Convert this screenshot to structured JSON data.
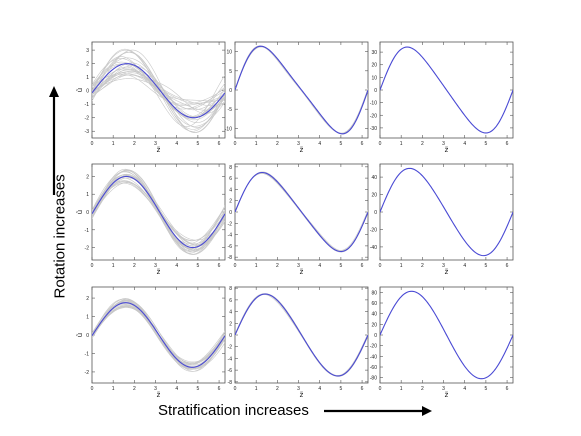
{
  "labels": {
    "stratification": "Stratification increases",
    "rotation": "Rotation increases"
  },
  "colors": {
    "mean_line": "#4a4ad4",
    "sample_lines": "#c8c8c8",
    "arrow": "#000000"
  },
  "chart_data": [
    {
      "type": "line",
      "row": 1,
      "col": 1,
      "xlabel": "z̃",
      "ylabel": "ũ",
      "xticks": [
        0,
        1,
        2,
        3,
        4,
        5,
        6
      ],
      "yticks": [
        -3,
        -2,
        -1,
        0,
        1,
        2,
        3
      ],
      "ylim": [
        -3.5,
        3.6
      ],
      "amplitude": 2.0,
      "phase": 0.08,
      "skew": 0.0,
      "offset": 0.0,
      "samples": 25,
      "spread": 0.55,
      "mode": "ensemble"
    },
    {
      "type": "line",
      "row": 1,
      "col": 2,
      "xlabel": "z̃",
      "ylabel": "",
      "xticks": [
        0,
        1,
        2,
        3,
        4,
        5,
        6
      ],
      "yticks": [
        -10,
        -5,
        0,
        5,
        10
      ],
      "ylim": [
        -12.5,
        12.5
      ],
      "amplitude": 11.4,
      "phase": 0.0,
      "skew": 0.38,
      "offset": 0.0,
      "samples": 6,
      "spread": 0.02,
      "mode": "band"
    },
    {
      "type": "line",
      "row": 1,
      "col": 3,
      "xlabel": "z̃",
      "ylabel": "",
      "xticks": [
        0,
        1,
        2,
        3,
        4,
        5,
        6
      ],
      "yticks": [
        -30,
        -20,
        -10,
        0,
        10,
        20,
        30
      ],
      "ylim": [
        -38,
        38
      ],
      "amplitude": 34,
      "phase": 0.0,
      "skew": 0.3,
      "offset": 0.0,
      "samples": 0,
      "spread": 0.0,
      "mode": "single"
    },
    {
      "type": "line",
      "row": 2,
      "col": 1,
      "xlabel": "z̃",
      "ylabel": "ũ",
      "xticks": [
        0,
        1,
        2,
        3,
        4,
        5,
        6
      ],
      "yticks": [
        -2,
        -1,
        0,
        1,
        2
      ],
      "ylim": [
        -2.7,
        2.7
      ],
      "amplitude": 2.0,
      "phase": 0.05,
      "skew": 0.0,
      "offset": 0.0,
      "samples": 25,
      "spread": 0.2,
      "mode": "ensemble"
    },
    {
      "type": "line",
      "row": 2,
      "col": 2,
      "xlabel": "z̃",
      "ylabel": "",
      "xticks": [
        0,
        1,
        2,
        3,
        4,
        5,
        6
      ],
      "yticks": [
        -8,
        -6,
        -4,
        -2,
        0,
        2,
        4,
        6,
        8
      ],
      "ylim": [
        -8.5,
        8.5
      ],
      "amplitude": 7.0,
      "phase": 0.0,
      "skew": 0.3,
      "offset": 0.0,
      "samples": 6,
      "spread": 0.03,
      "mode": "band"
    },
    {
      "type": "line",
      "row": 2,
      "col": 3,
      "xlabel": "z̃",
      "ylabel": "",
      "xticks": [
        0,
        1,
        2,
        3,
        4,
        5,
        6
      ],
      "yticks": [
        -40,
        -20,
        0,
        20,
        40
      ],
      "ylim": [
        -55,
        55
      ],
      "amplitude": 50,
      "phase": 0.0,
      "skew": 0.18,
      "offset": 0.0,
      "samples": 0,
      "spread": 0.0,
      "mode": "single"
    },
    {
      "type": "line",
      "row": 3,
      "col": 1,
      "xlabel": "z̃",
      "ylabel": "ũ",
      "xticks": [
        0,
        1,
        2,
        3,
        4,
        5,
        6
      ],
      "yticks": [
        -2,
        -1,
        0,
        1,
        2
      ],
      "ylim": [
        -2.6,
        2.6
      ],
      "amplitude": 1.75,
      "phase": 0.02,
      "skew": 0.0,
      "offset": 0.0,
      "samples": 25,
      "spread": 0.15,
      "mode": "ensemble"
    },
    {
      "type": "line",
      "row": 3,
      "col": 2,
      "xlabel": "z̃",
      "ylabel": "",
      "xticks": [
        0,
        1,
        2,
        3,
        4,
        5,
        6
      ],
      "yticks": [
        -8,
        -6,
        -4,
        -2,
        0,
        2,
        4,
        6,
        8
      ],
      "ylim": [
        -8.2,
        8.2
      ],
      "amplitude": 7.0,
      "phase": 0.0,
      "skew": 0.15,
      "offset": 0.0,
      "samples": 6,
      "spread": 0.02,
      "mode": "band"
    },
    {
      "type": "line",
      "row": 3,
      "col": 3,
      "xlabel": "z̃",
      "ylabel": "",
      "xticks": [
        0,
        1,
        2,
        3,
        4,
        5,
        6
      ],
      "yticks": [
        -80,
        -60,
        -40,
        -20,
        0,
        20,
        40,
        60,
        80
      ],
      "ylim": [
        -90,
        90
      ],
      "amplitude": 82,
      "phase": 0.0,
      "skew": 0.08,
      "offset": 0.0,
      "samples": 0,
      "spread": 0.0,
      "mode": "single"
    }
  ]
}
